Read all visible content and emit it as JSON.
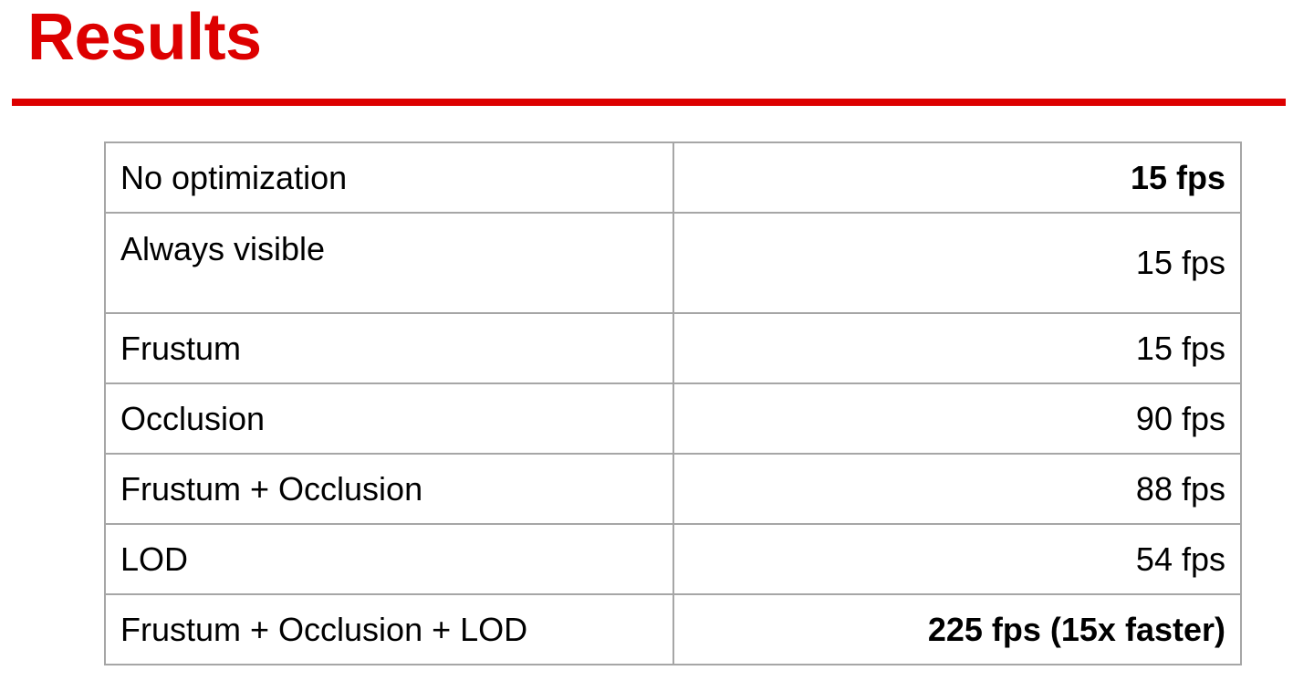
{
  "slide": {
    "title": "Results",
    "accent_color": "#dd0000"
  },
  "table": {
    "rows": [
      {
        "label": "No optimization",
        "value": "15 fps",
        "value_bold": true
      },
      {
        "label": "Always visible",
        "value": "15 fps",
        "value_bold": false
      },
      {
        "label": "Frustum",
        "value": "15 fps",
        "value_bold": false
      },
      {
        "label": "Occlusion",
        "value": "90 fps",
        "value_bold": false
      },
      {
        "label": "Frustum + Occlusion",
        "value": "88 fps",
        "value_bold": false
      },
      {
        "label": "LOD",
        "value": "54 fps",
        "value_bold": false
      },
      {
        "label": "Frustum + Occlusion + LOD",
        "value": "225 fps (15x faster)",
        "value_bold": true
      }
    ]
  }
}
